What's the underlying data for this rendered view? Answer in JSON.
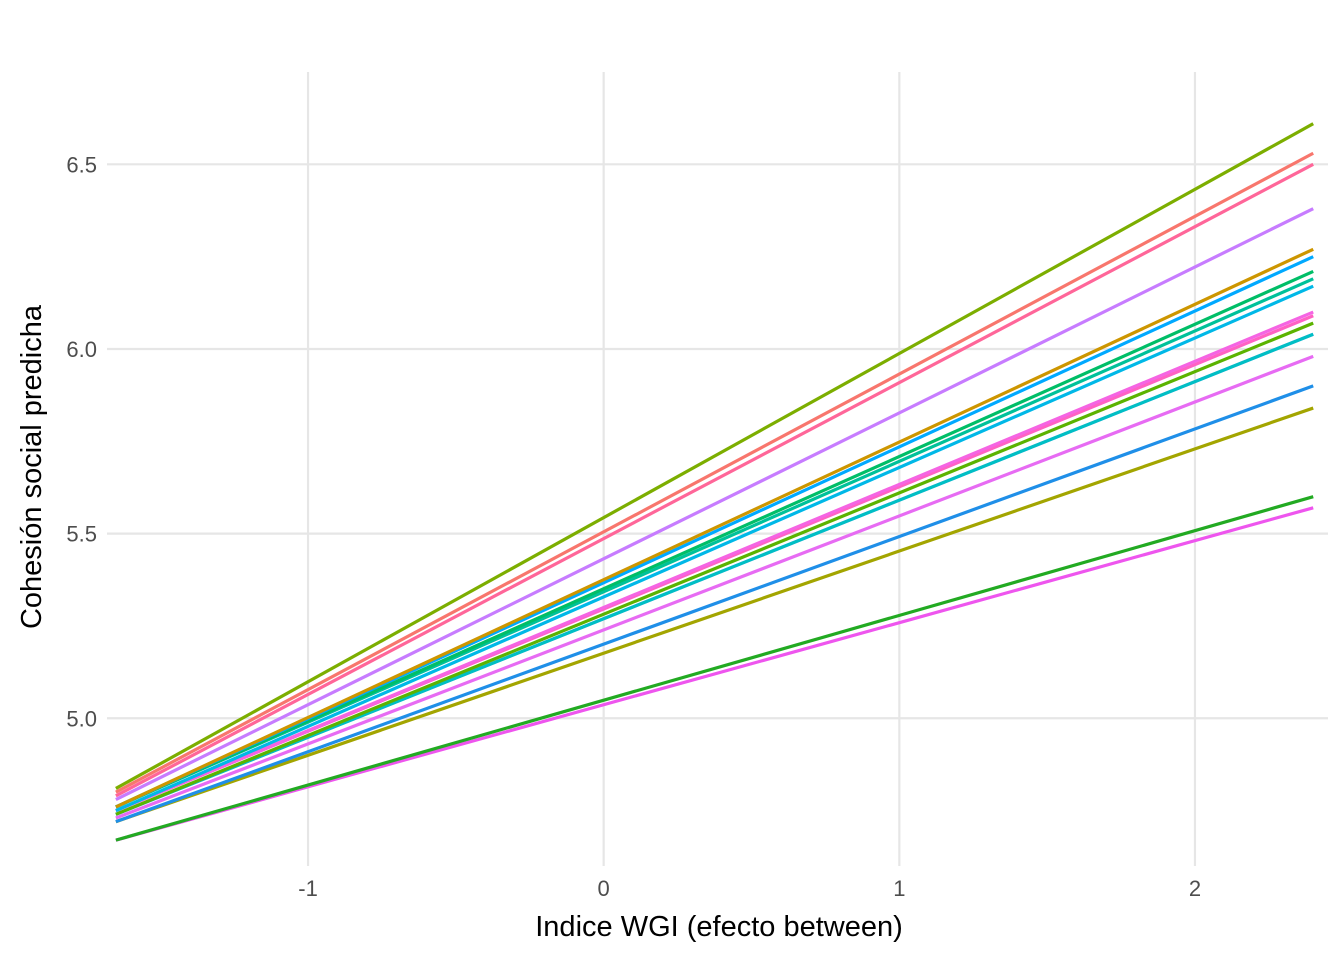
{
  "chart_data": {
    "type": "line",
    "title": "",
    "xlabel": "Indice WGI (efecto between)",
    "ylabel": "Cohesión social predicha",
    "xlim": [
      -1.68,
      2.45
    ],
    "ylim": [
      4.6,
      6.75
    ],
    "x_ticks": [
      -1,
      0,
      1,
      2
    ],
    "x_tick_labels": [
      "-1",
      "0",
      "1",
      "2"
    ],
    "y_ticks": [
      5.0,
      5.5,
      6.0,
      6.5
    ],
    "y_tick_labels": [
      "5.0",
      "5.5",
      "6.0",
      "6.5"
    ],
    "grid": true,
    "legend": "none",
    "x": [
      -1.65,
      2.4
    ],
    "series": [
      {
        "color": "#7CAE00",
        "values": [
          4.81,
          6.61
        ]
      },
      {
        "color": "#F8766D",
        "values": [
          4.8,
          6.53
        ]
      },
      {
        "color": "#FF6699",
        "values": [
          4.79,
          6.5
        ]
      },
      {
        "color": "#C77CFF",
        "values": [
          4.78,
          6.38
        ]
      },
      {
        "color": "#CD9600",
        "values": [
          4.76,
          6.27
        ]
      },
      {
        "color": "#00A9FF",
        "values": [
          4.76,
          6.25
        ]
      },
      {
        "color": "#00BE67",
        "values": [
          4.76,
          6.21
        ]
      },
      {
        "color": "#00C19A",
        "values": [
          4.76,
          6.19
        ]
      },
      {
        "color": "#00B8E7",
        "values": [
          4.75,
          6.17
        ]
      },
      {
        "color": "#F564E3",
        "values": [
          4.75,
          6.1
        ]
      },
      {
        "color": "#FF61C3",
        "values": [
          4.75,
          6.09
        ]
      },
      {
        "color": "#5BB300",
        "values": [
          4.74,
          6.07
        ]
      },
      {
        "color": "#8494FF",
        "values": [
          4.74,
          6.04
        ]
      },
      {
        "color": "#00BFC4",
        "values": [
          4.74,
          6.04
        ]
      },
      {
        "color": "#E76BF3",
        "values": [
          4.73,
          5.98
        ]
      },
      {
        "color": "#1F8FE8",
        "values": [
          4.72,
          5.9
        ]
      },
      {
        "color": "#A3A500",
        "values": [
          4.72,
          5.84
        ]
      },
      {
        "color": "#22AA22",
        "values": [
          4.67,
          5.6
        ]
      },
      {
        "color": "#EE55EE",
        "values": [
          4.67,
          5.57
        ]
      }
    ]
  }
}
